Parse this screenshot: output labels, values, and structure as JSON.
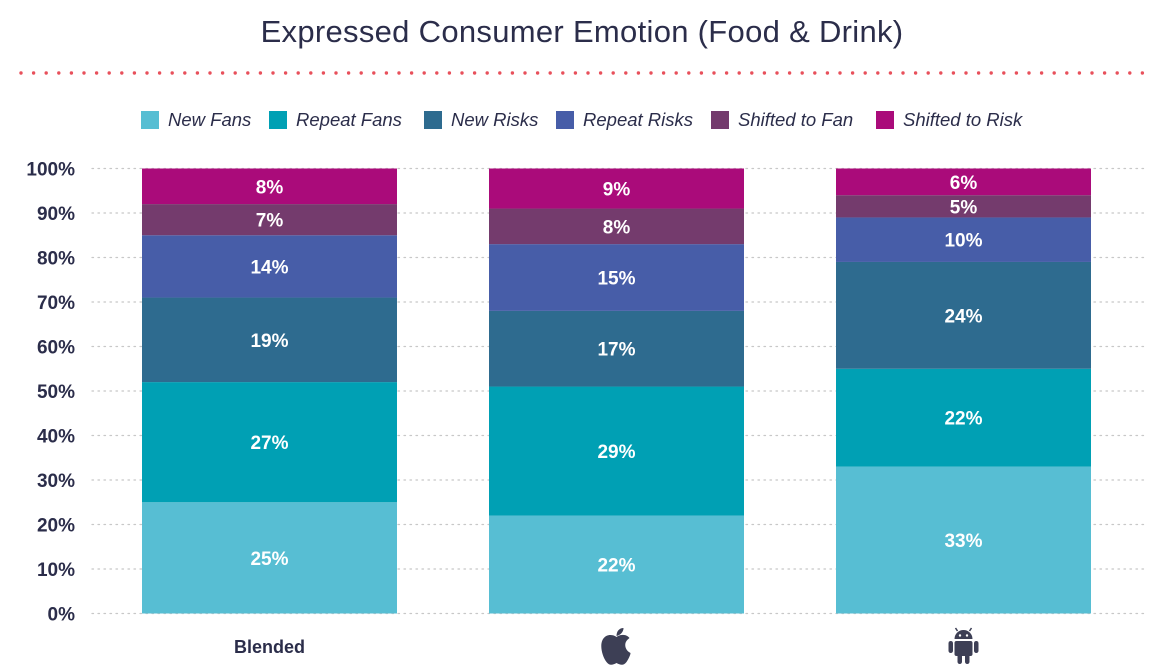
{
  "chart_data": {
    "type": "bar",
    "stacked": true,
    "title": "Expressed Consumer Emotion (Food & Drink)",
    "categories": [
      "Blended",
      "",
      ""
    ],
    "category_icons": [
      "",
      "apple-icon",
      "android-icon"
    ],
    "ylim": [
      0,
      100
    ],
    "yticks": [
      "0%",
      "10%",
      "20%",
      "30%",
      "40%",
      "50%",
      "60%",
      "70%",
      "80%",
      "90%",
      "100%"
    ],
    "grid": true,
    "legend_position": "top",
    "series": [
      {
        "name": "New Fans",
        "color": "#57bed3",
        "values": [
          25,
          22,
          33
        ],
        "labels": [
          "25%",
          "22%",
          "33%"
        ]
      },
      {
        "name": "Repeat Fans",
        "color": "#00a0b4",
        "values": [
          27,
          29,
          22
        ],
        "labels": [
          "27%",
          "29%",
          "22%"
        ]
      },
      {
        "name": "New Risks",
        "color": "#2e6b8f",
        "values": [
          19,
          17,
          24
        ],
        "labels": [
          "19%",
          "17%",
          "24%"
        ]
      },
      {
        "name": "Repeat Risks",
        "color": "#475da8",
        "values": [
          14,
          15,
          10
        ],
        "labels": [
          "14%",
          "15%",
          "10%"
        ]
      },
      {
        "name": "Shifted to Fan",
        "color": "#743b6d",
        "values": [
          7,
          8,
          5
        ],
        "labels": [
          "7%",
          "8%",
          "5%"
        ]
      },
      {
        "name": "Shifted to Risk",
        "color": "#aa0b7a",
        "values": [
          8,
          9,
          6
        ],
        "labels": [
          "8%",
          "9%",
          "6%"
        ]
      }
    ]
  },
  "colors": {
    "title": "#2b2d4a",
    "divider": "#e8505b",
    "text": "#2b2d4a"
  }
}
